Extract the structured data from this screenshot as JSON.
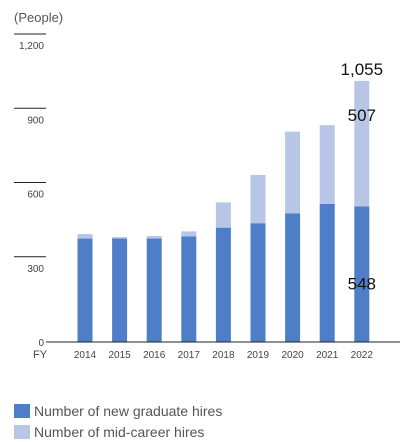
{
  "chart_data": {
    "type": "bar",
    "stacked": true,
    "unit_label": "(People)",
    "x_prefix": "FY",
    "categories": [
      "2014",
      "2015",
      "2016",
      "2017",
      "2018",
      "2019",
      "2020",
      "2021",
      "2022"
    ],
    "series": [
      {
        "name": "Number of new graduate hires",
        "color": "#4f7ec8",
        "values": [
          418,
          418,
          418,
          427,
          462,
          480,
          520,
          558,
          548
        ]
      },
      {
        "name": "Number of mid-career hires",
        "color": "#b7c6e6",
        "values": [
          18,
          6,
          10,
          20,
          102,
          195,
          330,
          318,
          507
        ]
      }
    ],
    "y_ticks": [
      "0",
      "300",
      "600",
      "900",
      "1,200"
    ],
    "y_tick_values": [
      0,
      300,
      600,
      900,
      1200
    ],
    "ylim": [
      0,
      1200
    ],
    "annotations": {
      "total_2022": "1,055",
      "mid_career_2022": "507",
      "new_graduate_2022": "548"
    },
    "grid": false,
    "legend_position": "bottom-left"
  }
}
